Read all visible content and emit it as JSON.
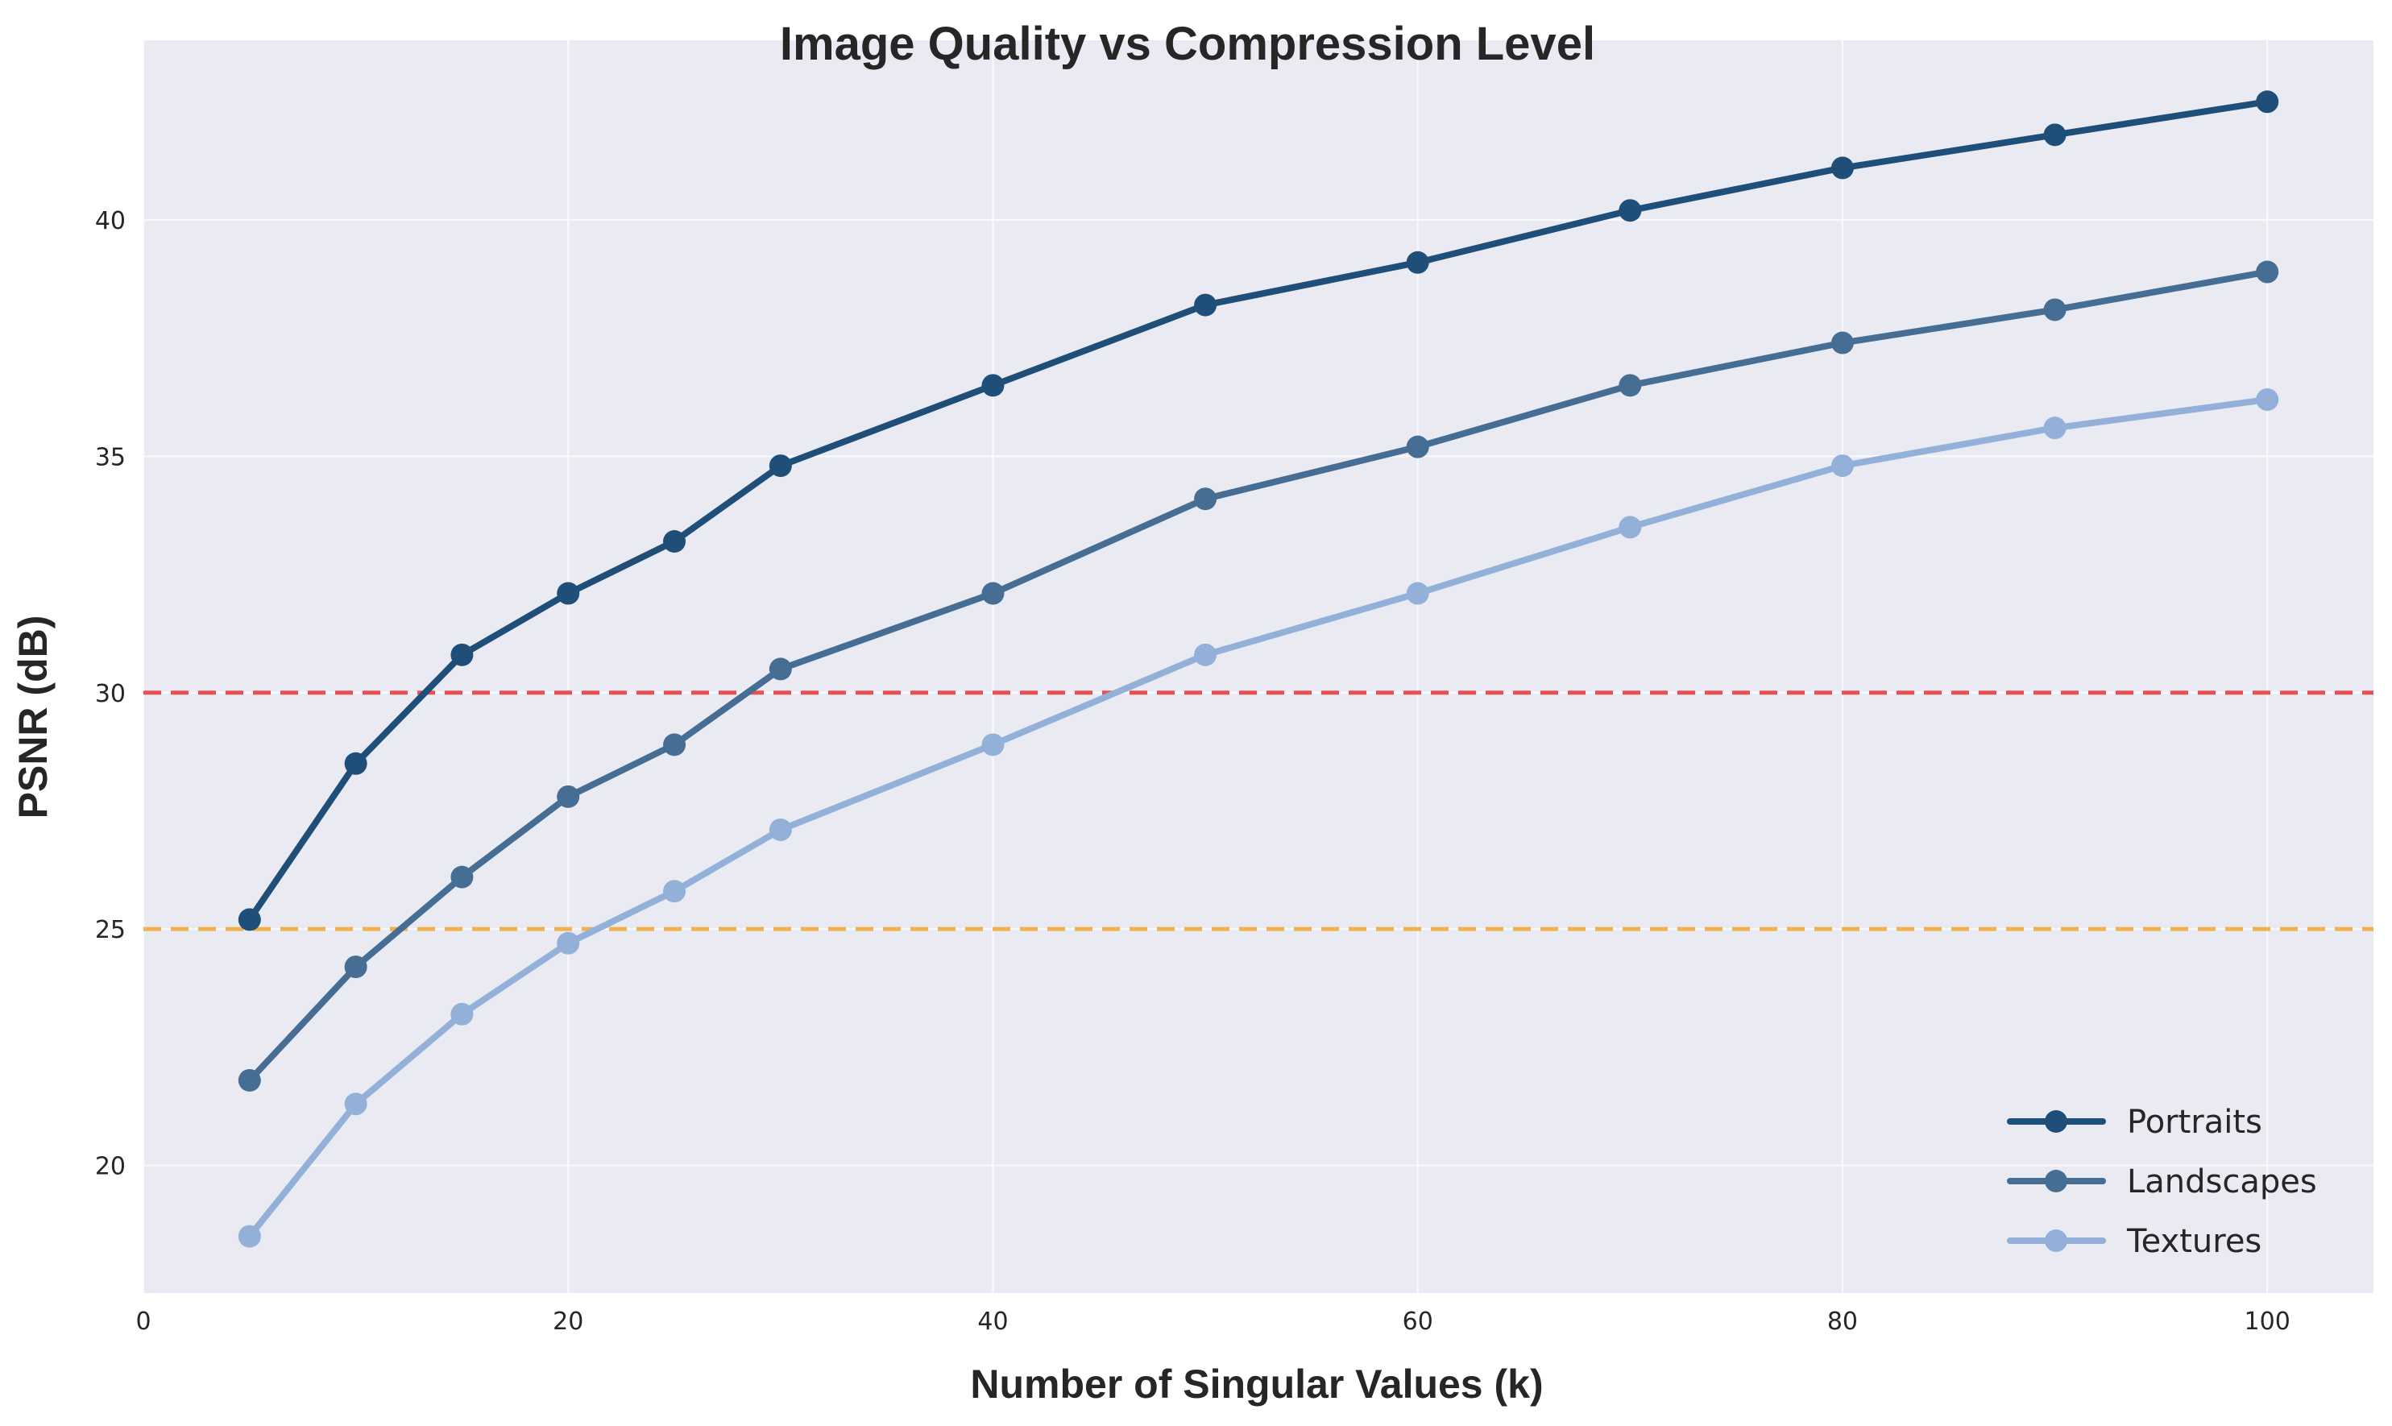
{
  "chart_data": {
    "type": "line",
    "title": "Image Quality vs Compression Level",
    "xlabel": "Number of Singular Values (k)",
    "ylabel": "PSNR (dB)",
    "xlim": [
      0,
      105
    ],
    "ylim": [
      17.3,
      43.8
    ],
    "xticks": [
      0,
      20,
      40,
      60,
      80,
      100
    ],
    "yticks": [
      20,
      25,
      30,
      35,
      40
    ],
    "grid": true,
    "legend_position": "bottom-right",
    "x": [
      5,
      10,
      15,
      20,
      25,
      30,
      40,
      50,
      60,
      70,
      80,
      90,
      100
    ],
    "series": [
      {
        "name": "Portraits",
        "color": "#1f4e79",
        "values": [
          25.2,
          28.5,
          30.8,
          32.1,
          33.2,
          34.8,
          36.5,
          38.2,
          39.1,
          40.2,
          41.1,
          41.8,
          42.5
        ]
      },
      {
        "name": "Landscapes",
        "color": "#466d93",
        "values": [
          21.8,
          24.2,
          26.1,
          27.8,
          28.9,
          30.5,
          32.1,
          34.1,
          35.2,
          36.5,
          37.4,
          38.1,
          38.9
        ]
      },
      {
        "name": "Textures",
        "color": "#93b1d8",
        "values": [
          18.5,
          21.3,
          23.2,
          24.7,
          25.8,
          27.1,
          28.9,
          30.8,
          32.1,
          33.5,
          34.8,
          35.6,
          36.2
        ]
      }
    ],
    "reference_lines": [
      {
        "y": 30,
        "color": "#e8484a",
        "style": "dashed"
      },
      {
        "y": 25,
        "color": "#f0b043",
        "style": "dashed"
      }
    ],
    "background_color": "#eaeaf2"
  }
}
